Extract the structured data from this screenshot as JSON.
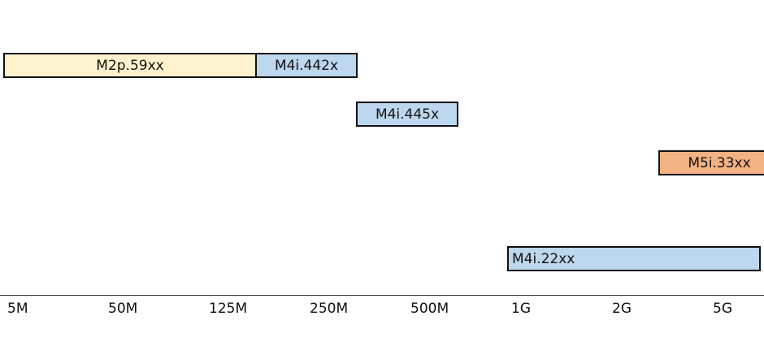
{
  "bars": [
    {
      "id": "m2p-59xx",
      "label": "M2p.59xx",
      "color": "#fff2cc"
    },
    {
      "id": "m4i-442x",
      "label": "M4i.442x",
      "color": "#bdd7ee"
    },
    {
      "id": "m4i-445x",
      "label": "M4i.445x",
      "color": "#bdd7ee"
    },
    {
      "id": "m5i-33xx",
      "label": "M5i.33xx",
      "color": "#f4b183"
    },
    {
      "id": "m4i-22xx",
      "label": "M4i.22xx",
      "color": "#bdd7ee"
    }
  ],
  "axis": {
    "ticks": [
      "5M",
      "50M",
      "125M",
      "250M",
      "500M",
      "1G",
      "2G",
      "5G"
    ]
  }
}
